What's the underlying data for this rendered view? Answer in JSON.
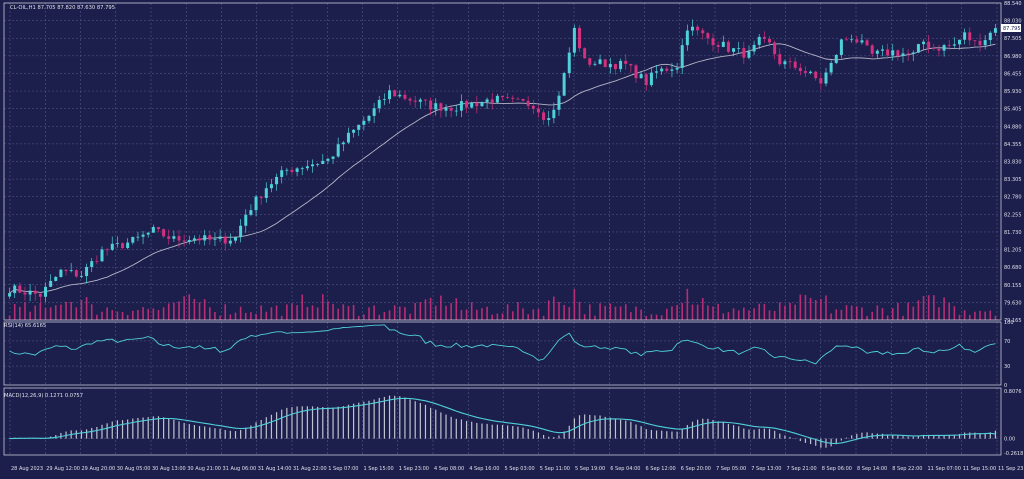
{
  "colors": {
    "background": "#1c1e4b",
    "grid": "#5a5d92",
    "frame": "#c8c8d8",
    "text": "#e0e0ea",
    "bull": "#4fd1d9",
    "bear": "#d2317d",
    "ma": "#b4b6c8",
    "rsi": "#4fd1d9",
    "macd_signal": "#4fd1d9",
    "macd_hist": "#c0c2d0",
    "volume": "#d2317d",
    "price_label_bg": "#ffffff",
    "price_label_text": "#1c1e4b"
  },
  "header": {
    "title": "CL-OIL,H1  87.705 87.820 87.630 87.795",
    "rsi_label": "RSI(14) 65.6165",
    "macd_label": "MACD(12,26,9) 0.1271 0.0757"
  },
  "chart_data": [
    {
      "type": "candlestick",
      "symbol": "CL-OIL",
      "timeframe": "H1",
      "last_price": "87.795",
      "ohlc_header": {
        "open": 87.705,
        "high": 87.82,
        "low": 87.63,
        "close": 87.795
      },
      "ylim": [
        79.165,
        88.54
      ],
      "y_tick_labels": [
        "88.540",
        "88.030",
        "87.505",
        "86.980",
        "86.455",
        "85.930",
        "85.405",
        "84.880",
        "84.355",
        "83.830",
        "83.305",
        "82.780",
        "82.255",
        "81.730",
        "81.205",
        "80.680",
        "80.155",
        "79.630",
        "79.165"
      ],
      "x_tick_labels": [
        "28 Aug 2023",
        "29 Aug 12:00",
        "29 Aug 20:00",
        "30 Aug 05:00",
        "30 Aug 13:00",
        "30 Aug 21:00",
        "31 Aug 06:00",
        "31 Aug 14:00",
        "31 Aug 22:00",
        "1 Sep 07:00",
        "1 Sep 15:00",
        "1 Sep 23:00",
        "4 Sep 08:00",
        "4 Sep 16:00",
        "5 Sep 03:00",
        "5 Sep 11:00",
        "5 Sep 19:00",
        "6 Sep 04:00",
        "6 Sep 12:00",
        "6 Sep 20:00",
        "7 Sep 05:00",
        "7 Sep 13:00",
        "7 Sep 21:00",
        "8 Sep 06:00",
        "8 Sep 14:00",
        "8 Sep 22:00",
        "11 Sep 07:00",
        "11 Sep 15:00",
        "11 Sep 23:00"
      ],
      "price_anchors": [
        [
          0,
          80.1
        ],
        [
          6,
          79.9
        ],
        [
          10,
          80.6
        ],
        [
          14,
          80.5
        ],
        [
          18,
          81.2
        ],
        [
          24,
          81.5
        ],
        [
          28,
          81.8
        ],
        [
          32,
          81.55
        ],
        [
          36,
          81.6
        ],
        [
          40,
          81.5
        ],
        [
          44,
          81.6
        ],
        [
          46,
          82.3
        ],
        [
          50,
          83.1
        ],
        [
          54,
          83.6
        ],
        [
          58,
          83.75
        ],
        [
          62,
          83.9
        ],
        [
          66,
          84.6
        ],
        [
          70,
          85.2
        ],
        [
          74,
          85.9
        ],
        [
          78,
          85.7
        ],
        [
          82,
          85.5
        ],
        [
          86,
          85.45
        ],
        [
          90,
          85.55
        ],
        [
          94,
          85.7
        ],
        [
          98,
          85.6
        ],
        [
          102,
          85.55
        ],
        [
          104,
          85.2
        ],
        [
          106,
          85.35
        ],
        [
          108,
          86.4
        ],
        [
          110,
          87.75
        ],
        [
          112,
          86.8
        ],
        [
          116,
          86.75
        ],
        [
          120,
          86.7
        ],
        [
          124,
          86.2
        ],
        [
          126,
          86.5
        ],
        [
          130,
          86.7
        ],
        [
          132,
          87.85
        ],
        [
          136,
          87.5
        ],
        [
          140,
          87.2
        ],
        [
          144,
          87.0
        ],
        [
          146,
          87.4
        ],
        [
          148,
          87.3
        ],
        [
          150,
          86.8
        ],
        [
          154,
          86.6
        ],
        [
          158,
          86.2
        ],
        [
          160,
          86.7
        ],
        [
          162,
          87.4
        ],
        [
          164,
          87.55
        ],
        [
          166,
          87.3
        ],
        [
          168,
          87.0
        ],
        [
          172,
          87.1
        ],
        [
          176,
          87.0
        ],
        [
          178,
          87.4
        ],
        [
          180,
          87.2
        ],
        [
          184,
          87.3
        ],
        [
          186,
          87.6
        ],
        [
          188,
          87.35
        ],
        [
          190,
          87.5
        ],
        [
          192,
          87.795
        ]
      ],
      "ma_period": 20
    },
    {
      "type": "line",
      "name": "RSI(14)",
      "ylim": [
        0,
        100
      ],
      "y_tick_labels": [
        "100",
        "70",
        "30",
        "0"
      ],
      "levels": [
        70,
        30
      ],
      "last_value": 65.6165
    },
    {
      "type": "bar+line",
      "name": "MACD(12,26,9)",
      "y_tick_labels": [
        "0.8076",
        "0.00",
        "-0.2618"
      ],
      "ylim": [
        -0.2618,
        0.8076
      ],
      "main_value": 0.1271,
      "signal_value": 0.0757
    }
  ]
}
